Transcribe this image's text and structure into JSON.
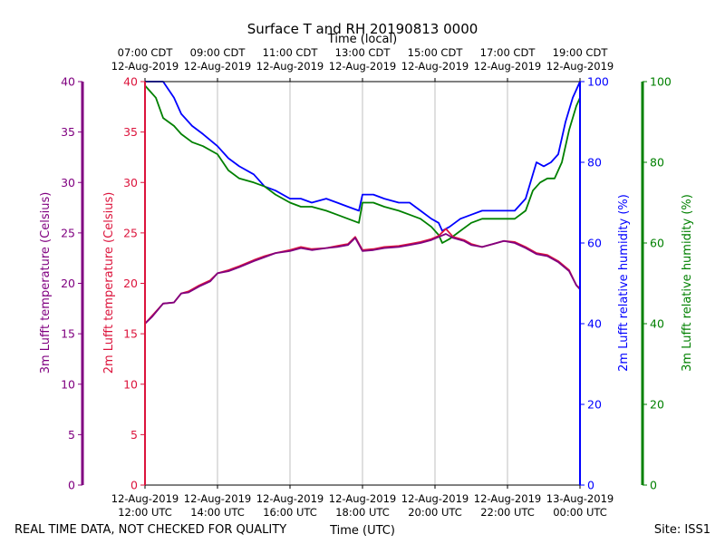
{
  "chart_data": {
    "type": "line",
    "title": "Surface T and RH 20190813 0000",
    "top_axis_label": "Time (local)",
    "bottom_axis_label": "Time (UTC)",
    "footer_left": "REAL TIME DATA, NOT CHECKED FOR QUALITY",
    "footer_right": "Site: ISS1",
    "x_range_hours": [
      0,
      12
    ],
    "bottom_ticks": [
      {
        "h": 0,
        "line1": "12-Aug-2019",
        "line2": "12:00 UTC"
      },
      {
        "h": 2,
        "line1": "12-Aug-2019",
        "line2": "14:00 UTC"
      },
      {
        "h": 4,
        "line1": "12-Aug-2019",
        "line2": "16:00 UTC"
      },
      {
        "h": 6,
        "line1": "12-Aug-2019",
        "line2": "18:00 UTC"
      },
      {
        "h": 8,
        "line1": "12-Aug-2019",
        "line2": "20:00 UTC"
      },
      {
        "h": 10,
        "line1": "12-Aug-2019",
        "line2": "22:00 UTC"
      },
      {
        "h": 12,
        "line1": "13-Aug-2019",
        "line2": "00:00 UTC"
      }
    ],
    "top_ticks": [
      {
        "h": 0,
        "line1": "07:00 CDT",
        "line2": "12-Aug-2019"
      },
      {
        "h": 2,
        "line1": "09:00 CDT",
        "line2": "12-Aug-2019"
      },
      {
        "h": 4,
        "line1": "11:00 CDT",
        "line2": "12-Aug-2019"
      },
      {
        "h": 6,
        "line1": "13:00 CDT",
        "line2": "12-Aug-2019"
      },
      {
        "h": 8,
        "line1": "15:00 CDT",
        "line2": "12-Aug-2019"
      },
      {
        "h": 10,
        "line1": "17:00 CDT",
        "line2": "12-Aug-2019"
      },
      {
        "h": 12,
        "line1": "19:00 CDT",
        "line2": "12-Aug-2019"
      }
    ],
    "axes": {
      "t3m": {
        "label": "3m Lufft temperature (Celsius)",
        "color": "#800080",
        "ylim": [
          0,
          40
        ],
        "ticks": [
          0,
          5,
          10,
          15,
          20,
          25,
          30,
          35,
          40
        ]
      },
      "t2m": {
        "label": "2m Lufft temperature (Celsius)",
        "color": "#dc143c",
        "ylim": [
          0,
          40
        ],
        "ticks": [
          0,
          5,
          10,
          15,
          20,
          25,
          30,
          35,
          40
        ]
      },
      "rh2m": {
        "label": "2m Lufft relative humidity (%)",
        "color": "#0000ff",
        "ylim": [
          0,
          100
        ],
        "ticks": [
          0,
          20,
          40,
          60,
          80,
          100
        ]
      },
      "rh3m": {
        "label": "3m Lufft relative humidity (%)",
        "color": "#008000",
        "ylim": [
          0,
          100
        ],
        "ticks": [
          0,
          20,
          40,
          60,
          80,
          100
        ]
      }
    },
    "series": [
      {
        "name": "2m Lufft relative humidity (%)",
        "axis": "rh2m",
        "color": "#0000ff",
        "x": [
          0,
          0.3,
          0.5,
          0.8,
          1.0,
          1.3,
          1.6,
          2.0,
          2.3,
          2.6,
          3.0,
          3.3,
          3.6,
          4.0,
          4.3,
          4.6,
          5.0,
          5.3,
          5.6,
          5.9,
          6.0,
          6.3,
          6.6,
          7.0,
          7.3,
          7.6,
          7.9,
          8.1,
          8.2,
          8.4,
          8.7,
          9.0,
          9.3,
          9.6,
          9.9,
          10.2,
          10.5,
          10.7,
          10.8,
          11.0,
          11.2,
          11.4,
          11.6,
          11.8,
          12.0
        ],
        "y": [
          100,
          100,
          100,
          96,
          92,
          89,
          87,
          84,
          81,
          79,
          77,
          74,
          73,
          71,
          71,
          70,
          71,
          70,
          69,
          68,
          72,
          72,
          71,
          70,
          70,
          68,
          66,
          65,
          63,
          64,
          66,
          67,
          68,
          68,
          68,
          68,
          71,
          77,
          80,
          79,
          80,
          82,
          90,
          96,
          100
        ]
      },
      {
        "name": "3m Lufft relative humidity (%)",
        "axis": "rh3m",
        "color": "#008000",
        "x": [
          0,
          0.1,
          0.3,
          0.5,
          0.8,
          1.0,
          1.3,
          1.6,
          2.0,
          2.3,
          2.6,
          3.0,
          3.3,
          3.6,
          4.0,
          4.3,
          4.6,
          5.0,
          5.3,
          5.6,
          5.9,
          6.0,
          6.3,
          6.6,
          7.0,
          7.3,
          7.6,
          7.9,
          8.1,
          8.2,
          8.4,
          8.7,
          9.0,
          9.3,
          9.6,
          9.9,
          10.2,
          10.5,
          10.7,
          10.9,
          11.1,
          11.3,
          11.5,
          11.7,
          11.9,
          12.0
        ],
        "y": [
          99,
          98,
          96,
          91,
          89,
          87,
          85,
          84,
          82,
          78,
          76,
          75,
          74,
          72,
          70,
          69,
          69,
          68,
          67,
          66,
          65,
          70,
          70,
          69,
          68,
          67,
          66,
          64,
          62,
          60,
          61,
          63,
          65,
          66,
          66,
          66,
          66,
          68,
          73,
          75,
          76,
          76,
          80,
          88,
          94,
          96
        ]
      },
      {
        "name": "2m Lufft temperature (Celsius)",
        "axis": "t2m",
        "color": "#dc143c",
        "x": [
          0,
          0.2,
          0.5,
          0.8,
          1.0,
          1.2,
          1.5,
          1.8,
          2.0,
          2.3,
          2.6,
          3.0,
          3.3,
          3.6,
          4.0,
          4.3,
          4.6,
          5.0,
          5.3,
          5.6,
          5.8,
          6.0,
          6.3,
          6.6,
          7.0,
          7.3,
          7.6,
          7.9,
          8.1,
          8.3,
          8.5,
          8.8,
          9.0,
          9.3,
          9.6,
          9.9,
          10.2,
          10.5,
          10.8,
          11.1,
          11.4,
          11.7,
          11.9,
          12.0
        ],
        "y": [
          16.0,
          16.8,
          18.0,
          18.1,
          19.0,
          19.2,
          19.8,
          20.3,
          21.0,
          21.3,
          21.7,
          22.3,
          22.7,
          23.0,
          23.3,
          23.6,
          23.4,
          23.5,
          23.7,
          23.9,
          24.6,
          23.3,
          23.4,
          23.6,
          23.7,
          23.9,
          24.1,
          24.4,
          24.7,
          25.4,
          24.6,
          24.3,
          23.9,
          23.6,
          23.9,
          24.2,
          24.1,
          23.6,
          23.0,
          22.8,
          22.2,
          21.3,
          19.8,
          19.5
        ]
      },
      {
        "name": "3m Lufft temperature (Celsius)",
        "axis": "t3m",
        "color": "#800080",
        "x": [
          0,
          0.2,
          0.5,
          0.8,
          1.0,
          1.2,
          1.5,
          1.8,
          2.0,
          2.3,
          2.6,
          3.0,
          3.3,
          3.6,
          4.0,
          4.3,
          4.6,
          5.0,
          5.3,
          5.6,
          5.8,
          6.0,
          6.3,
          6.6,
          7.0,
          7.3,
          7.6,
          7.9,
          8.1,
          8.3,
          8.5,
          8.8,
          9.0,
          9.3,
          9.6,
          9.9,
          10.2,
          10.5,
          10.8,
          11.1,
          11.4,
          11.7,
          11.9,
          12.0
        ],
        "y": [
          16.0,
          16.7,
          18.0,
          18.1,
          19.0,
          19.1,
          19.7,
          20.2,
          21.0,
          21.2,
          21.6,
          22.2,
          22.6,
          23.0,
          23.2,
          23.5,
          23.3,
          23.5,
          23.6,
          23.8,
          24.5,
          23.2,
          23.3,
          23.5,
          23.6,
          23.8,
          24.0,
          24.3,
          24.6,
          24.9,
          24.5,
          24.2,
          23.8,
          23.6,
          23.9,
          24.2,
          24.0,
          23.5,
          22.9,
          22.7,
          22.1,
          21.2,
          19.8,
          19.4
        ]
      }
    ]
  }
}
